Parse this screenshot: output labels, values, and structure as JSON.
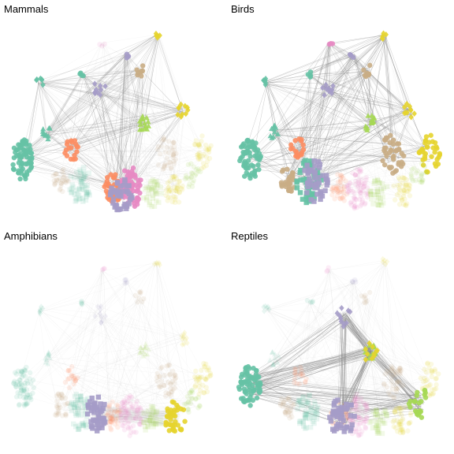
{
  "figure": {
    "panels": [
      {
        "title": "Mammals"
      },
      {
        "title": "Birds"
      },
      {
        "title": "Amphibians"
      },
      {
        "title": "Reptiles"
      }
    ],
    "palette": {
      "teal": "#66c2a5",
      "salmon": "#fc8d62",
      "lavender": "#a59cc8",
      "pink": "#e78ac3",
      "lime": "#a6d854",
      "yellow": "#e5d42d",
      "tan": "#c9ad85",
      "edge": "#8c8c8c"
    }
  }
}
